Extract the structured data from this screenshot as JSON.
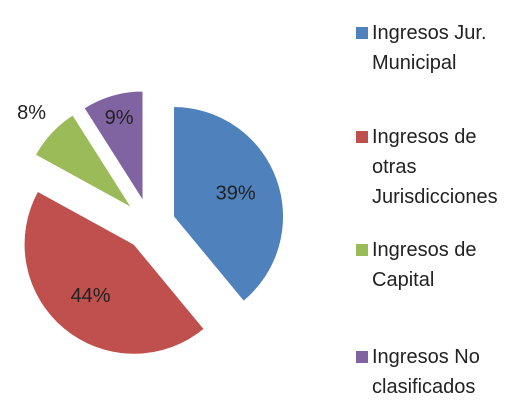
{
  "chart_data": {
    "type": "pie",
    "categories": [
      "Ingresos Jur. Municipal",
      "Ingresos de otras Jurisdicciones",
      "Ingresos de Capital",
      "Ingresos No clasificados"
    ],
    "values": [
      39,
      44,
      8,
      9
    ],
    "value_labels": [
      "39%",
      "44%",
      "8%",
      "9%"
    ],
    "colors": [
      "#4f81bd",
      "#c0504d",
      "#9bbb59",
      "#8064a2"
    ],
    "legend": "right"
  }
}
